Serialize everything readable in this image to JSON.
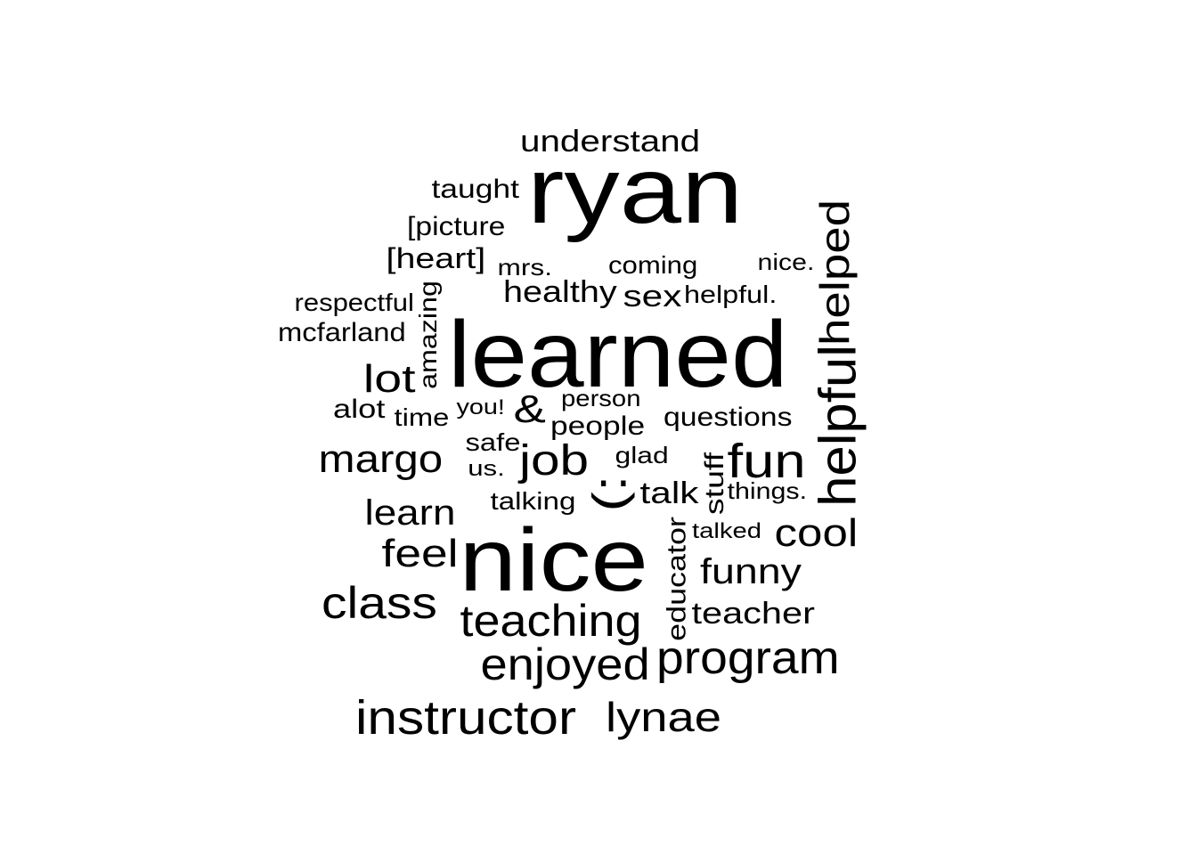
{
  "cloud": {
    "words": [
      {
        "id": "ryan",
        "text": "ryan"
      },
      {
        "id": "learned",
        "text": "learned"
      },
      {
        "id": "nice",
        "text": "nice"
      },
      {
        "id": "helpful",
        "text": "helpful"
      },
      {
        "id": "instructor",
        "text": "instructor"
      },
      {
        "id": "fun",
        "text": "fun"
      },
      {
        "id": "program",
        "text": "program"
      },
      {
        "id": "enjoyed",
        "text": "enjoyed"
      },
      {
        "id": "teaching",
        "text": "teaching"
      },
      {
        "id": "class",
        "text": "class"
      },
      {
        "id": "smiley",
        "text": ":)"
      },
      {
        "id": "job",
        "text": "job"
      },
      {
        "id": "helped",
        "text": "helped"
      },
      {
        "id": "lynae",
        "text": "lynae"
      },
      {
        "id": "margo",
        "text": "margo"
      },
      {
        "id": "lot",
        "text": "lot"
      },
      {
        "id": "feel",
        "text": "feel"
      },
      {
        "id": "cool",
        "text": "cool"
      },
      {
        "id": "funny",
        "text": "funny"
      },
      {
        "id": "learn",
        "text": "learn"
      },
      {
        "id": "ampersand",
        "text": "&"
      },
      {
        "id": "understand",
        "text": "understand"
      },
      {
        "id": "teacher",
        "text": "teacher"
      },
      {
        "id": "healthy",
        "text": "healthy"
      },
      {
        "id": "sex",
        "text": "sex"
      },
      {
        "id": "talk",
        "text": "talk"
      },
      {
        "id": "heart",
        "text": "[heart]"
      },
      {
        "id": "educator",
        "text": "educator"
      },
      {
        "id": "people",
        "text": "people"
      },
      {
        "id": "taught",
        "text": "taught"
      },
      {
        "id": "picture",
        "text": "[picture"
      },
      {
        "id": "questions",
        "text": "questions"
      },
      {
        "id": "mcfarland",
        "text": "mcfarland"
      },
      {
        "id": "respectful",
        "text": "respectful"
      },
      {
        "id": "stuff",
        "text": "stuff"
      },
      {
        "id": "alot",
        "text": "alot"
      },
      {
        "id": "amazing",
        "text": "amazing"
      },
      {
        "id": "coming",
        "text": "coming"
      },
      {
        "id": "helpful-dot",
        "text": "helpful."
      },
      {
        "id": "safe",
        "text": "safe"
      },
      {
        "id": "talking",
        "text": "talking"
      },
      {
        "id": "time",
        "text": "time"
      },
      {
        "id": "mrs",
        "text": "mrs."
      },
      {
        "id": "nice-dot",
        "text": "nice."
      },
      {
        "id": "things-dot",
        "text": "things."
      },
      {
        "id": "glad",
        "text": "glad"
      },
      {
        "id": "person",
        "text": "person"
      },
      {
        "id": "you",
        "text": "you!"
      },
      {
        "id": "us-dot",
        "text": "us."
      },
      {
        "id": "talked",
        "text": "talked"
      }
    ]
  }
}
